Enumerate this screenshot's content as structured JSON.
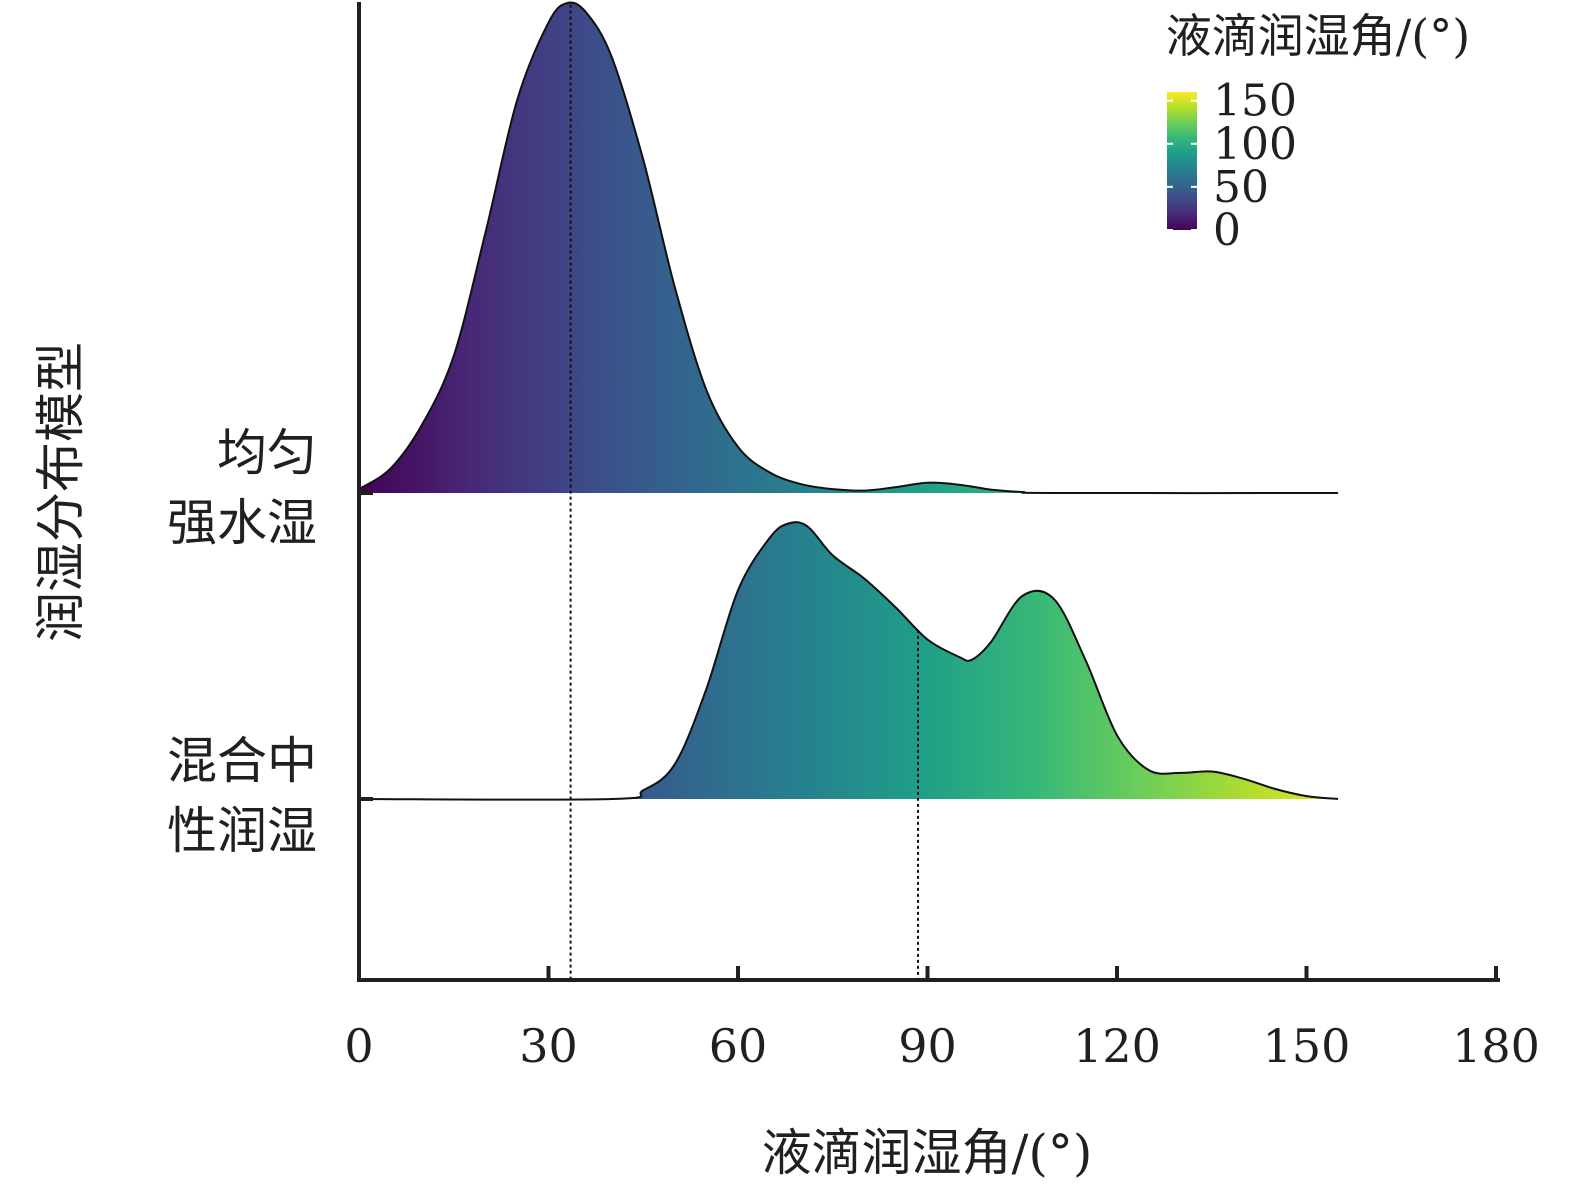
{
  "chart_data": {
    "type": "ridgeline-density",
    "xlabel": "液滴润湿角/(°)",
    "ylabel": "润湿分布模型",
    "xlim": [
      0,
      180
    ],
    "x_ticks": [
      0,
      30,
      60,
      90,
      120,
      150,
      180
    ],
    "x_tick_labels": [
      "0",
      "30",
      "60",
      "90",
      "120",
      "150",
      "180"
    ],
    "colorbar": {
      "title": "液滴润湿角/(°)",
      "range": [
        0,
        160
      ],
      "ticks": [
        0,
        50,
        100,
        150
      ],
      "tick_labels": [
        "0",
        "50",
        "100",
        "150"
      ],
      "palette": [
        "#440154",
        "#482878",
        "#3e4a89",
        "#31688e",
        "#26828e",
        "#1f9e89",
        "#35b779",
        "#6ece58",
        "#b5de2b",
        "#fde725"
      ]
    },
    "series": [
      {
        "category_lines": [
          "均匀",
          "强水湿"
        ],
        "mean": 33.5,
        "density_x": [
          0,
          5,
          10,
          15,
          20,
          25,
          30,
          33,
          36,
          40,
          45,
          50,
          55,
          60,
          65,
          70,
          75,
          80,
          85,
          90,
          95,
          100,
          105,
          110,
          155
        ],
        "density_y": [
          0.008,
          0.05,
          0.14,
          0.28,
          0.53,
          0.8,
          0.96,
          1.0,
          0.98,
          0.89,
          0.68,
          0.42,
          0.21,
          0.094,
          0.042,
          0.018,
          0.008,
          0.005,
          0.012,
          0.021,
          0.017,
          0.007,
          0.002,
          0.0,
          0.0
        ]
      },
      {
        "category_lines": [
          "混合中",
          "性润湿"
        ],
        "mean": 88.5,
        "density_x": [
          0,
          40,
          45,
          50,
          55,
          60,
          65,
          68,
          71,
          75,
          80,
          85,
          90,
          95,
          97,
          100,
          105,
          110,
          115,
          120,
          125,
          130,
          135,
          140,
          145,
          150,
          155
        ],
        "density_y": [
          0.0,
          0.0,
          0.03,
          0.12,
          0.38,
          0.72,
          0.9,
          0.95,
          0.94,
          0.84,
          0.76,
          0.66,
          0.55,
          0.49,
          0.48,
          0.54,
          0.7,
          0.69,
          0.48,
          0.22,
          0.1,
          0.09,
          0.095,
          0.07,
          0.035,
          0.01,
          0.0
        ]
      }
    ]
  }
}
